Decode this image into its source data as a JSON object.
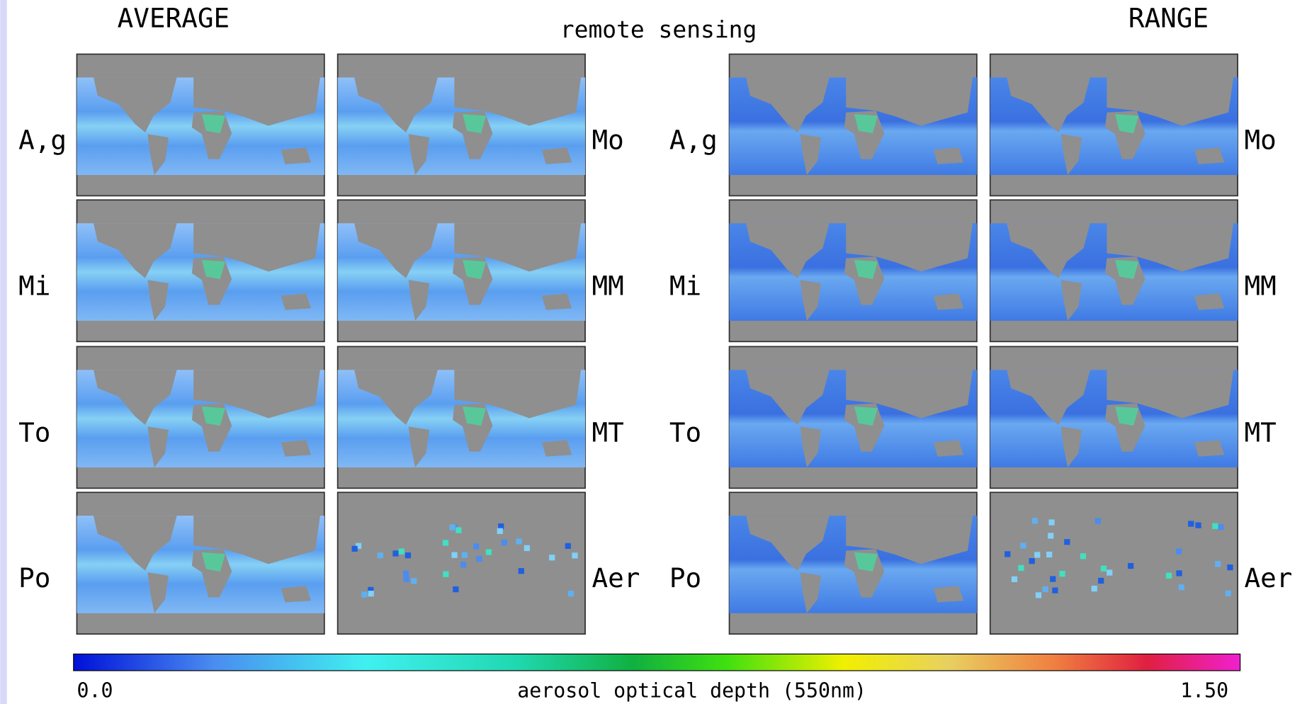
{
  "header": {
    "left_title": "AVERAGE",
    "center_title": "remote sensing",
    "right_title": "RANGE"
  },
  "groups": [
    {
      "left_labels": [
        "A,g",
        "Mi",
        "To",
        "Po"
      ],
      "right_labels": [
        "Mo",
        "MM",
        "MT",
        "Aer"
      ]
    },
    {
      "left_labels": [
        "A,g",
        "Mi",
        "To",
        "Po"
      ],
      "right_labels": [
        "Mo",
        "MM",
        "MT",
        "Aer"
      ]
    }
  ],
  "colorbar": {
    "min_label": "0.0",
    "title": "aerosol optical depth  (550nm)",
    "max_label": "1.50"
  }
}
